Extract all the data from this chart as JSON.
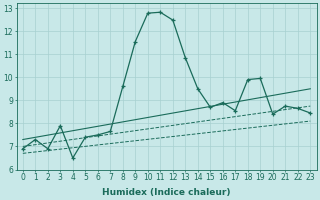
{
  "xlabel": "Humidex (Indice chaleur)",
  "bg_color": "#c8e8e8",
  "line_color": "#1a6b5a",
  "grid_color": "#a8d0d0",
  "xlim": [
    -0.5,
    23.5
  ],
  "ylim": [
    6,
    13.2
  ],
  "yticks": [
    6,
    7,
    8,
    9,
    10,
    11,
    12,
    13
  ],
  "xticks": [
    0,
    1,
    2,
    3,
    4,
    5,
    6,
    7,
    8,
    9,
    10,
    11,
    12,
    13,
    14,
    15,
    16,
    17,
    18,
    19,
    20,
    21,
    22,
    23
  ],
  "curve_x": [
    0,
    1,
    2,
    3,
    4,
    5,
    6,
    7,
    8,
    9,
    10,
    11,
    12,
    13,
    14,
    15,
    16,
    17,
    18,
    19,
    20,
    21,
    22,
    23
  ],
  "curve_y": [
    6.9,
    7.3,
    6.9,
    7.9,
    6.5,
    7.4,
    7.5,
    7.65,
    9.6,
    11.55,
    12.78,
    12.82,
    12.48,
    10.85,
    9.5,
    8.7,
    8.9,
    8.55,
    9.9,
    9.95,
    8.4,
    8.75,
    8.65,
    8.45
  ],
  "trend1_x": [
    0,
    23
  ],
  "trend1_y": [
    6.7,
    8.1
  ],
  "trend2_x": [
    0,
    23
  ],
  "trend2_y": [
    7.0,
    8.75
  ],
  "trend3_x": [
    0,
    23
  ],
  "trend3_y": [
    7.3,
    9.5
  ],
  "xlabel_fontsize": 6.5,
  "tick_fontsize": 5.5,
  "figsize": [
    3.2,
    2.0
  ],
  "dpi": 100
}
